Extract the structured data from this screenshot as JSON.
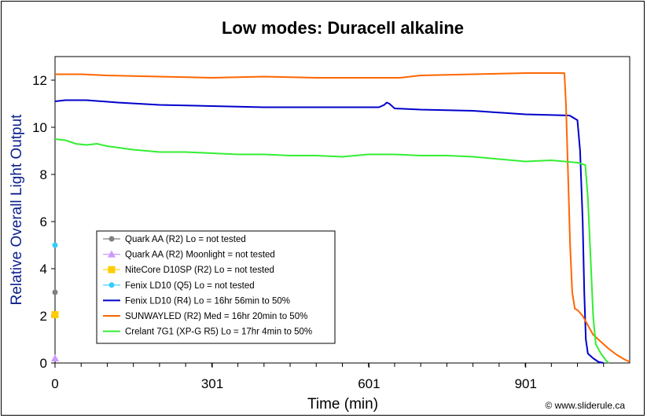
{
  "credit": "© www.sliderule.ca",
  "colors": {
    "gray": "#808080",
    "violet": "#cc99ff",
    "yellow": "#ffcc00",
    "cyan": "#33ccff",
    "blue": "#0000cc",
    "orange": "#ff6600",
    "green": "#33ee33"
  },
  "chart_data": {
    "type": "line",
    "title": "Low modes: Duracell alkaline",
    "xlabel": "Time (min)",
    "ylabel": "Relative Overall Light Output",
    "xlim": [
      0,
      1100
    ],
    "ylim": [
      0,
      13
    ],
    "xticks": [
      0,
      301,
      601,
      901
    ],
    "xtick_labels": [
      "0",
      "301",
      "601",
      "901"
    ],
    "yticks": [
      0,
      2,
      4,
      6,
      8,
      10,
      12
    ],
    "grid": false,
    "legend_position": "bottom-left",
    "series": [
      {
        "name": "Quark AA (R2) Lo = not tested",
        "color": "#808080",
        "marker": "circle",
        "points": [
          [
            0,
            3.0
          ]
        ]
      },
      {
        "name": "Quark AA (R2) Moonlight = not tested",
        "color": "#cc99ff",
        "marker": "triangle",
        "points": [
          [
            0,
            0.2
          ]
        ]
      },
      {
        "name": "NiteCore D10SP (R2) Lo = not tested",
        "color": "#ffcc00",
        "marker": "square",
        "points": [
          [
            0,
            2.05
          ]
        ]
      },
      {
        "name": "Fenix LD10 (Q5) Lo = not tested",
        "color": "#33ccff",
        "marker": "circle",
        "points": [
          [
            0,
            5.0
          ]
        ]
      },
      {
        "name": "Fenix LD10 (R4) Lo = 16hr 56min to 50%",
        "color": "#0000cc",
        "marker": "line",
        "points": [
          [
            0,
            11.1
          ],
          [
            20,
            11.15
          ],
          [
            60,
            11.15
          ],
          [
            120,
            11.05
          ],
          [
            200,
            10.95
          ],
          [
            300,
            10.9
          ],
          [
            400,
            10.85
          ],
          [
            500,
            10.85
          ],
          [
            620,
            10.85
          ],
          [
            630,
            10.95
          ],
          [
            635,
            11.05
          ],
          [
            640,
            11.0
          ],
          [
            650,
            10.8
          ],
          [
            700,
            10.75
          ],
          [
            800,
            10.7
          ],
          [
            900,
            10.55
          ],
          [
            985,
            10.5
          ],
          [
            1000,
            10.3
          ],
          [
            1005,
            9.0
          ],
          [
            1010,
            6.0
          ],
          [
            1013,
            3.0
          ],
          [
            1016,
            1.0
          ],
          [
            1020,
            0.4
          ],
          [
            1030,
            0.2
          ],
          [
            1040,
            0.05
          ],
          [
            1050,
            0.0
          ]
        ]
      },
      {
        "name": "SUNWAYLED (R2) Med = 16hr 20min to 50%",
        "color": "#ff6600",
        "marker": "line",
        "points": [
          [
            0,
            12.25
          ],
          [
            50,
            12.25
          ],
          [
            100,
            12.2
          ],
          [
            200,
            12.15
          ],
          [
            300,
            12.1
          ],
          [
            400,
            12.15
          ],
          [
            500,
            12.1
          ],
          [
            600,
            12.1
          ],
          [
            660,
            12.1
          ],
          [
            700,
            12.2
          ],
          [
            800,
            12.25
          ],
          [
            900,
            12.3
          ],
          [
            960,
            12.3
          ],
          [
            975,
            12.3
          ],
          [
            978,
            11.0
          ],
          [
            982,
            8.0
          ],
          [
            986,
            5.0
          ],
          [
            990,
            3.0
          ],
          [
            995,
            2.3
          ],
          [
            1000,
            2.25
          ],
          [
            1010,
            2.0
          ],
          [
            1020,
            1.6
          ],
          [
            1030,
            1.2
          ],
          [
            1045,
            0.9
          ],
          [
            1060,
            0.6
          ],
          [
            1075,
            0.35
          ],
          [
            1090,
            0.15
          ],
          [
            1100,
            0.05
          ]
        ]
      },
      {
        "name": "Crelant 7G1 (XP-G R5) Lo = 17hr 4min to 50%",
        "color": "#33ee33",
        "marker": "line",
        "points": [
          [
            0,
            9.5
          ],
          [
            20,
            9.45
          ],
          [
            40,
            9.3
          ],
          [
            60,
            9.25
          ],
          [
            80,
            9.3
          ],
          [
            100,
            9.2
          ],
          [
            150,
            9.05
          ],
          [
            200,
            8.95
          ],
          [
            250,
            8.95
          ],
          [
            300,
            8.9
          ],
          [
            350,
            8.85
          ],
          [
            400,
            8.85
          ],
          [
            450,
            8.8
          ],
          [
            500,
            8.8
          ],
          [
            550,
            8.75
          ],
          [
            600,
            8.85
          ],
          [
            650,
            8.85
          ],
          [
            700,
            8.8
          ],
          [
            750,
            8.8
          ],
          [
            800,
            8.75
          ],
          [
            850,
            8.65
          ],
          [
            900,
            8.55
          ],
          [
            950,
            8.6
          ],
          [
            1000,
            8.5
          ],
          [
            1015,
            8.4
          ],
          [
            1020,
            7.0
          ],
          [
            1025,
            4.5
          ],
          [
            1030,
            2.0
          ],
          [
            1035,
            0.8
          ],
          [
            1045,
            0.4
          ],
          [
            1055,
            0.1
          ],
          [
            1060,
            0.0
          ]
        ]
      }
    ]
  }
}
